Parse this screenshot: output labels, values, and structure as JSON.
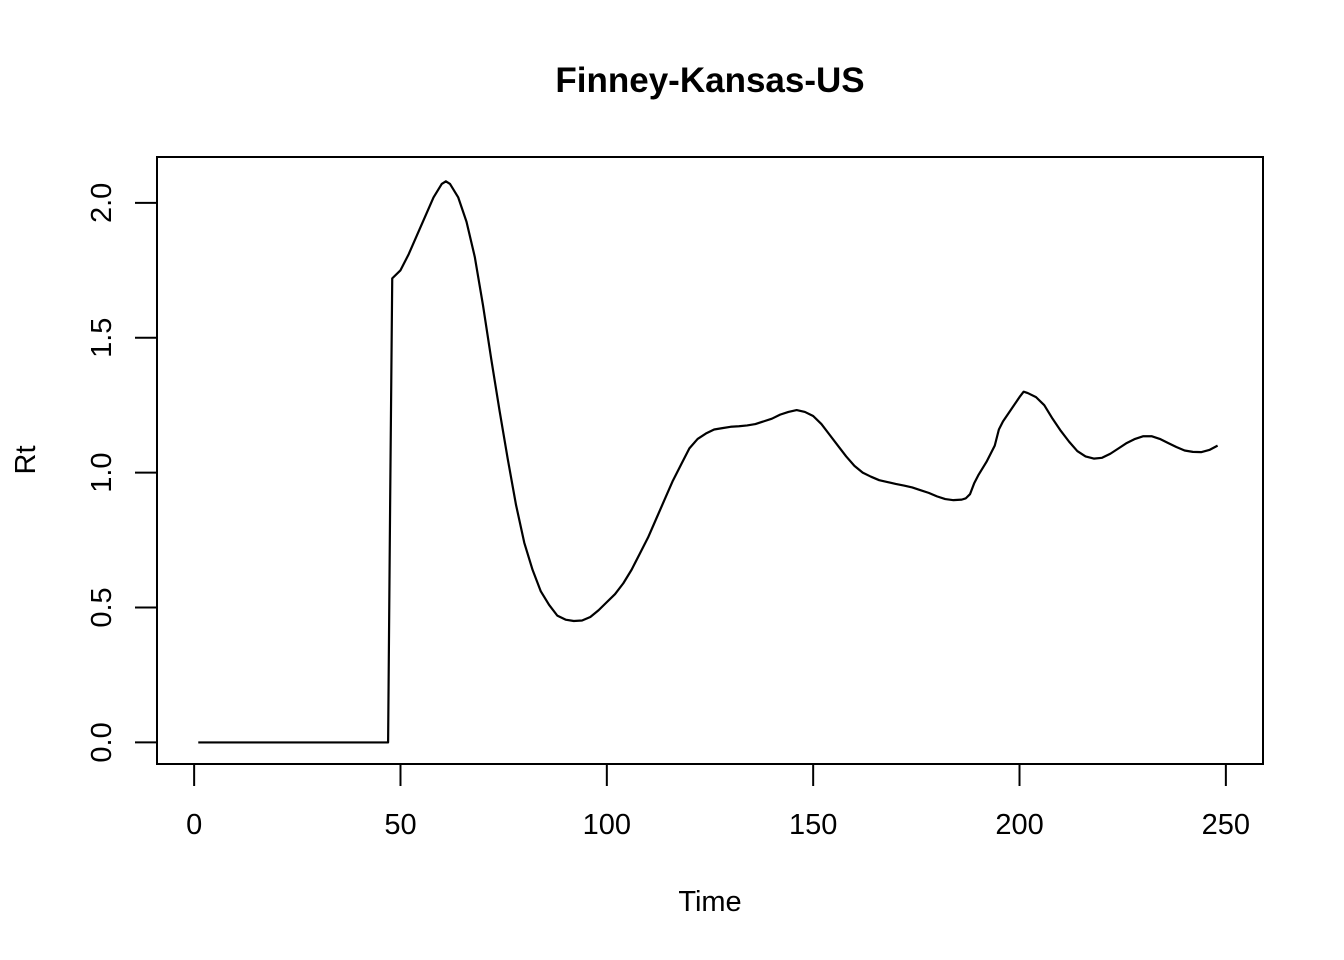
{
  "chart_data": {
    "type": "line",
    "title": "Finney-Kansas-US",
    "xlabel": "Time",
    "ylabel": "Rt",
    "xlim": [
      -9,
      259
    ],
    "ylim": [
      -0.08,
      2.17
    ],
    "xticks": [
      0,
      50,
      100,
      150,
      200,
      250
    ],
    "xtick_labels": [
      "0",
      "50",
      "100",
      "150",
      "200",
      "250"
    ],
    "yticks": [
      0.0,
      0.5,
      1.0,
      1.5,
      2.0
    ],
    "ytick_labels": [
      "0.0",
      "0.5",
      "1.0",
      "1.5",
      "2.0"
    ],
    "grid": false,
    "legend": "none",
    "line_color": "#000000",
    "series": [
      {
        "x": [
          1,
          10,
          20,
          30,
          40,
          47,
          47.5,
          48,
          50,
          52,
          54,
          56,
          58,
          60,
          61,
          62,
          64,
          66,
          68,
          70,
          72,
          74,
          76,
          78,
          80,
          82,
          84,
          86,
          88,
          90,
          92,
          94,
          96,
          98,
          100,
          102,
          104,
          106,
          108,
          110,
          112,
          114,
          116,
          118,
          120,
          122,
          124,
          126,
          128,
          130,
          132,
          134,
          136,
          138,
          140,
          142,
          144,
          146,
          148,
          150,
          152,
          154,
          156,
          158,
          160,
          162,
          164,
          166,
          168,
          170,
          172,
          174,
          176,
          178,
          180,
          182,
          184,
          186,
          187,
          188,
          189,
          190,
          192,
          194,
          195,
          196,
          198,
          200,
          201,
          202,
          204,
          206,
          208,
          210,
          212,
          214,
          216,
          218,
          220,
          222,
          224,
          226,
          228,
          230,
          232,
          234,
          236,
          238,
          240,
          242,
          244,
          246,
          248
        ],
        "y": [
          0,
          0,
          0,
          0,
          0,
          0,
          0.9,
          1.72,
          1.75,
          1.81,
          1.88,
          1.95,
          2.02,
          2.07,
          2.08,
          2.07,
          2.02,
          1.93,
          1.8,
          1.62,
          1.42,
          1.23,
          1.05,
          0.88,
          0.74,
          0.64,
          0.56,
          0.51,
          0.47,
          0.455,
          0.45,
          0.452,
          0.465,
          0.49,
          0.52,
          0.55,
          0.59,
          0.64,
          0.7,
          0.76,
          0.83,
          0.9,
          0.97,
          1.03,
          1.09,
          1.125,
          1.145,
          1.16,
          1.165,
          1.17,
          1.172,
          1.175,
          1.18,
          1.19,
          1.2,
          1.215,
          1.225,
          1.232,
          1.225,
          1.21,
          1.18,
          1.14,
          1.1,
          1.06,
          1.025,
          1.0,
          0.985,
          0.972,
          0.965,
          0.958,
          0.952,
          0.945,
          0.935,
          0.925,
          0.912,
          0.902,
          0.898,
          0.9,
          0.905,
          0.92,
          0.96,
          0.99,
          1.04,
          1.1,
          1.16,
          1.19,
          1.235,
          1.28,
          1.3,
          1.295,
          1.28,
          1.25,
          1.2,
          1.155,
          1.115,
          1.08,
          1.06,
          1.052,
          1.055,
          1.07,
          1.09,
          1.11,
          1.125,
          1.135,
          1.135,
          1.125,
          1.11,
          1.095,
          1.082,
          1.077,
          1.076,
          1.084,
          1.1
        ]
      }
    ]
  }
}
